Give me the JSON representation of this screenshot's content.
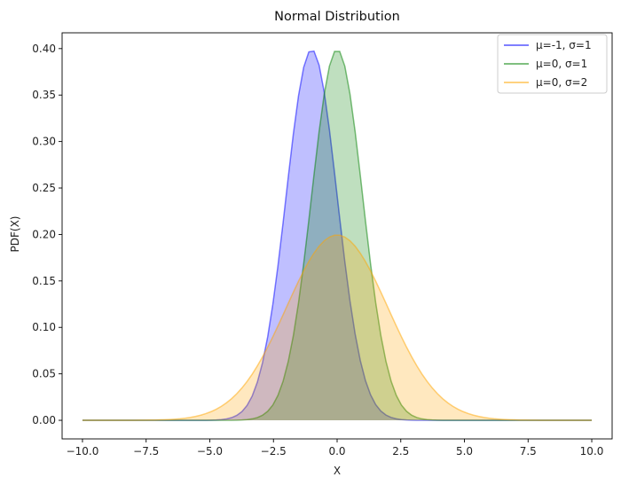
{
  "chart_data": {
    "type": "area",
    "title": "Normal Distribution",
    "xlabel": "X",
    "ylabel": "PDF(X)",
    "xlim": [
      -10.8,
      10.8
    ],
    "ylim": [
      -0.02,
      0.417
    ],
    "x_range": [
      -10,
      10
    ],
    "num_points": 100,
    "xticks": [
      -10.0,
      -7.5,
      -5.0,
      -2.5,
      0.0,
      2.5,
      5.0,
      7.5,
      10.0
    ],
    "xtick_labels": [
      "−10.0",
      "−7.5",
      "−5.0",
      "−2.5",
      "0.0",
      "2.5",
      "5.0",
      "7.5",
      "10.0"
    ],
    "yticks": [
      0.0,
      0.05,
      0.1,
      0.15,
      0.2,
      0.25,
      0.3,
      0.35,
      0.4
    ],
    "ytick_labels": [
      "0.00",
      "0.05",
      "0.10",
      "0.15",
      "0.20",
      "0.25",
      "0.30",
      "0.35",
      "0.40"
    ],
    "grid": false,
    "legend_position": "top-right",
    "series": [
      {
        "name": "μ=-1, σ=1",
        "mu": -1,
        "sigma": 1,
        "color": "#0000ff"
      },
      {
        "name": "μ=0, σ=1",
        "mu": 0,
        "sigma": 1,
        "color": "#008000"
      },
      {
        "name": "μ=0, σ=2",
        "mu": 0,
        "sigma": 2,
        "color": "#ffa500"
      }
    ]
  }
}
